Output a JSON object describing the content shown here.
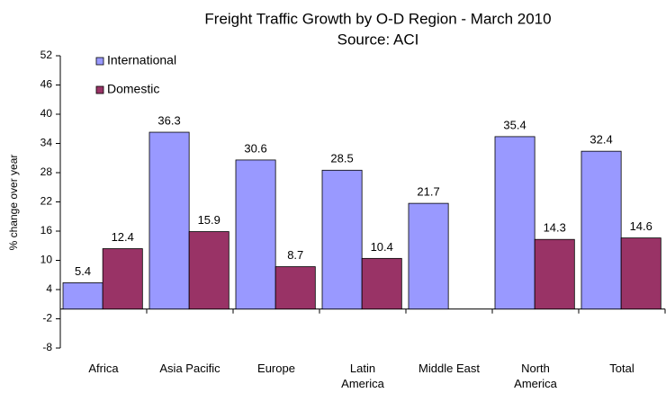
{
  "chart_data": {
    "type": "bar",
    "title": "Freight Traffic Growth by O-D Region - March 2010",
    "subtitle": "Source: ACI",
    "y_label": "% change over year",
    "categories": [
      "Africa",
      "Asia Pacific",
      "Europe",
      "Latin America",
      "Middle East",
      "North America",
      "Total"
    ],
    "series": [
      {
        "name": "International",
        "color": "#9999ff",
        "values": [
          5.4,
          36.3,
          30.6,
          28.5,
          21.7,
          35.4,
          32.4
        ]
      },
      {
        "name": "Domestic",
        "color": "#993366",
        "values": [
          12.4,
          15.9,
          8.7,
          10.4,
          null,
          14.3,
          14.6
        ]
      }
    ],
    "ylim": [
      -8,
      52
    ],
    "yticks": [
      -8,
      -2,
      4,
      10,
      16,
      22,
      28,
      34,
      40,
      46,
      52
    ],
    "legend": "top-left"
  }
}
